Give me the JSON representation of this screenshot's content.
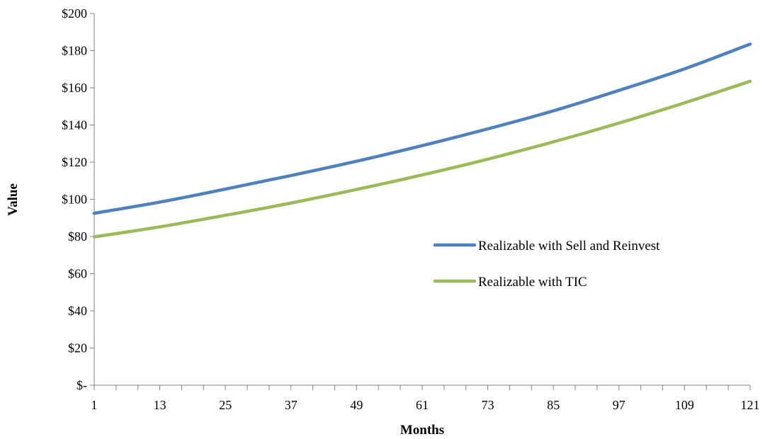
{
  "chart_data": {
    "type": "line",
    "title": "",
    "xlabel": "Months",
    "ylabel": "Value",
    "x_ticks": [
      1,
      13,
      25,
      37,
      49,
      61,
      73,
      85,
      97,
      109,
      121
    ],
    "xlim": [
      1,
      121
    ],
    "ylim": [
      0,
      200
    ],
    "y_ticks": [
      0,
      20,
      40,
      60,
      80,
      100,
      120,
      140,
      160,
      180,
      200
    ],
    "y_tick_labels": [
      "$-",
      "$20",
      "$40",
      "$60",
      "$80",
      "$100",
      "$120",
      "$140",
      "$160",
      "$180",
      "$200"
    ],
    "grid": false,
    "legend_position": "center-right",
    "series": [
      {
        "name": "Realizable with Sell and Reinvest",
        "color": "#4f81bd",
        "x": [
          1,
          13,
          25,
          37,
          49,
          61,
          73,
          85,
          97,
          109,
          121
        ],
        "values": [
          92.5,
          98.5,
          105.5,
          112.8,
          120.5,
          128.9,
          137.9,
          147.6,
          158.6,
          170.2,
          183.5
        ]
      },
      {
        "name": "Realizable with TIC",
        "color": "#9bbb59",
        "x": [
          1,
          13,
          25,
          37,
          49,
          61,
          73,
          85,
          97,
          109,
          121
        ],
        "values": [
          79.8,
          85.2,
          91.4,
          98.0,
          105.3,
          113.1,
          121.6,
          130.9,
          141.0,
          151.9,
          163.5
        ]
      }
    ]
  }
}
